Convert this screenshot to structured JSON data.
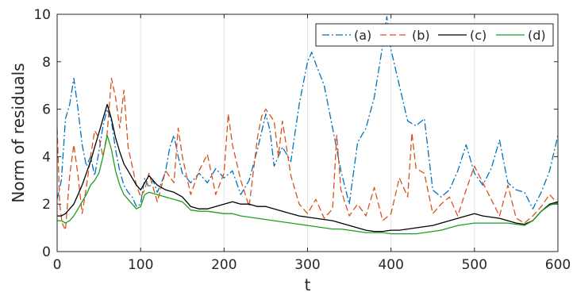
{
  "chart_data": {
    "type": "line",
    "title": "",
    "xlabel": "t",
    "ylabel": "Norm of residuals",
    "xlim": [
      0,
      600
    ],
    "ylim": [
      0,
      10
    ],
    "xticks": [
      0,
      100,
      200,
      300,
      400,
      500,
      600
    ],
    "yticks": [
      0,
      2,
      4,
      6,
      8,
      10
    ],
    "xtick_labels": [
      "0",
      "100",
      "200",
      "300",
      "400",
      "500",
      "600"
    ],
    "ytick_labels": [
      "0",
      "2",
      "4",
      "6",
      "8",
      "10"
    ],
    "grid": "x-only",
    "legend_position": "top-right",
    "series": [
      {
        "name": "(a)",
        "color": "#0072BD",
        "style": "dash-dot",
        "x": [
          0,
          5,
          10,
          15,
          20,
          25,
          30,
          35,
          40,
          45,
          50,
          55,
          60,
          65,
          70,
          75,
          80,
          85,
          90,
          95,
          100,
          105,
          110,
          115,
          120,
          125,
          130,
          135,
          140,
          145,
          150,
          160,
          170,
          180,
          190,
          200,
          210,
          220,
          230,
          240,
          250,
          255,
          260,
          270,
          280,
          290,
          300,
          305,
          310,
          320,
          330,
          340,
          350,
          360,
          370,
          380,
          390,
          395,
          400,
          410,
          420,
          430,
          440,
          450,
          460,
          470,
          480,
          490,
          500,
          510,
          520,
          530,
          540,
          550,
          560,
          570,
          580,
          590,
          600
        ],
        "y": [
          2.2,
          3.0,
          5.6,
          6.2,
          7.3,
          6.0,
          4.5,
          3.6,
          4.0,
          3.2,
          4.2,
          5.3,
          6.0,
          5.5,
          4.3,
          3.4,
          2.8,
          2.5,
          2.3,
          1.9,
          2.0,
          3.1,
          2.7,
          3.0,
          2.5,
          2.9,
          3.4,
          4.4,
          4.9,
          4.0,
          3.3,
          2.9,
          3.3,
          2.9,
          3.5,
          3.1,
          3.4,
          2.4,
          3.0,
          4.3,
          5.8,
          5.1,
          3.6,
          4.4,
          3.8,
          6.2,
          8.0,
          8.4,
          7.9,
          7.0,
          5.2,
          3.4,
          2.0,
          4.6,
          5.2,
          6.5,
          8.7,
          9.9,
          8.5,
          7.0,
          5.5,
          5.3,
          5.6,
          2.6,
          2.3,
          2.6,
          3.4,
          4.5,
          3.3,
          2.8,
          3.5,
          4.7,
          2.9,
          2.6,
          2.5,
          1.8,
          2.5,
          3.4,
          4.9
        ]
      },
      {
        "name": "(b)",
        "color": "#D95319",
        "style": "dashed",
        "x": [
          0,
          3,
          6,
          10,
          15,
          20,
          25,
          30,
          35,
          40,
          45,
          50,
          55,
          60,
          65,
          70,
          75,
          80,
          85,
          90,
          95,
          100,
          105,
          110,
          120,
          130,
          140,
          145,
          150,
          160,
          170,
          180,
          190,
          200,
          205,
          210,
          220,
          230,
          240,
          245,
          250,
          260,
          265,
          270,
          280,
          290,
          300,
          310,
          320,
          330,
          335,
          340,
          350,
          360,
          370,
          380,
          390,
          400,
          410,
          420,
          425,
          430,
          440,
          450,
          460,
          470,
          480,
          490,
          500,
          510,
          520,
          530,
          540,
          550,
          560,
          570,
          580,
          590,
          600
        ],
        "y": [
          5.2,
          2.0,
          1.2,
          0.9,
          3.2,
          4.5,
          3.2,
          1.6,
          2.7,
          4.0,
          5.1,
          4.8,
          4.0,
          5.0,
          7.3,
          6.5,
          5.2,
          6.8,
          4.4,
          3.6,
          2.8,
          2.3,
          2.6,
          3.3,
          2.1,
          3.4,
          2.9,
          5.2,
          4.0,
          2.4,
          3.4,
          4.1,
          2.4,
          3.3,
          5.8,
          4.5,
          3.0,
          1.9,
          4.8,
          5.7,
          6.0,
          5.5,
          4.0,
          5.5,
          3.2,
          2.0,
          1.6,
          2.2,
          1.4,
          1.8,
          4.9,
          2.6,
          1.5,
          2.0,
          1.5,
          2.7,
          1.3,
          1.6,
          3.1,
          2.3,
          5.0,
          3.5,
          3.3,
          1.6,
          2.0,
          2.3,
          1.5,
          2.6,
          3.6,
          2.9,
          2.2,
          1.5,
          2.8,
          1.4,
          1.2,
          1.5,
          1.9,
          2.4,
          2.0
        ]
      },
      {
        "name": "(c)",
        "color": "#000000",
        "style": "solid",
        "x": [
          0,
          5,
          10,
          15,
          20,
          25,
          30,
          35,
          40,
          45,
          50,
          55,
          60,
          65,
          70,
          75,
          80,
          85,
          90,
          95,
          100,
          105,
          110,
          120,
          130,
          140,
          150,
          160,
          170,
          180,
          190,
          200,
          210,
          220,
          230,
          240,
          250,
          260,
          270,
          280,
          290,
          300,
          310,
          320,
          330,
          340,
          350,
          360,
          370,
          380,
          390,
          400,
          410,
          420,
          430,
          440,
          450,
          460,
          470,
          480,
          490,
          500,
          510,
          520,
          530,
          540,
          550,
          560,
          570,
          580,
          590,
          600
        ],
        "y": [
          1.5,
          1.5,
          1.6,
          1.8,
          2.0,
          2.4,
          2.8,
          3.3,
          3.8,
          4.4,
          5.0,
          5.6,
          6.2,
          5.6,
          4.8,
          4.2,
          3.7,
          3.4,
          3.1,
          2.8,
          2.6,
          2.9,
          3.2,
          2.8,
          2.6,
          2.5,
          2.3,
          1.9,
          1.8,
          1.8,
          1.9,
          2.0,
          2.1,
          2.0,
          2.0,
          1.9,
          1.9,
          1.8,
          1.7,
          1.6,
          1.5,
          1.45,
          1.4,
          1.35,
          1.3,
          1.2,
          1.1,
          1.0,
          0.9,
          0.85,
          0.85,
          0.9,
          0.9,
          0.95,
          1.0,
          1.05,
          1.1,
          1.2,
          1.3,
          1.4,
          1.5,
          1.6,
          1.5,
          1.45,
          1.4,
          1.3,
          1.2,
          1.15,
          1.3,
          1.7,
          2.0,
          2.1
        ]
      },
      {
        "name": "(d)",
        "color": "#1E9E1E",
        "style": "solid",
        "x": [
          0,
          5,
          10,
          15,
          20,
          25,
          30,
          35,
          40,
          45,
          50,
          55,
          60,
          65,
          70,
          75,
          80,
          85,
          90,
          95,
          100,
          105,
          110,
          120,
          130,
          140,
          150,
          160,
          170,
          180,
          190,
          200,
          210,
          220,
          230,
          240,
          250,
          260,
          270,
          280,
          290,
          300,
          310,
          320,
          330,
          340,
          350,
          360,
          370,
          380,
          390,
          400,
          410,
          420,
          430,
          440,
          450,
          460,
          470,
          480,
          490,
          500,
          510,
          520,
          530,
          540,
          550,
          560,
          570,
          580,
          590,
          600
        ],
        "y": [
          1.3,
          1.3,
          1.2,
          1.3,
          1.5,
          1.8,
          2.1,
          2.4,
          2.8,
          3.0,
          3.3,
          4.0,
          4.9,
          4.3,
          3.4,
          2.8,
          2.4,
          2.2,
          2.0,
          1.8,
          1.9,
          2.4,
          2.5,
          2.4,
          2.3,
          2.2,
          2.1,
          1.75,
          1.7,
          1.7,
          1.65,
          1.6,
          1.6,
          1.5,
          1.45,
          1.4,
          1.35,
          1.3,
          1.25,
          1.2,
          1.15,
          1.1,
          1.05,
          1.0,
          0.95,
          0.95,
          0.9,
          0.85,
          0.8,
          0.8,
          0.8,
          0.75,
          0.75,
          0.75,
          0.75,
          0.8,
          0.85,
          0.9,
          1.0,
          1.1,
          1.15,
          1.2,
          1.2,
          1.2,
          1.2,
          1.2,
          1.15,
          1.1,
          1.3,
          1.7,
          1.95,
          2.05
        ]
      }
    ]
  }
}
